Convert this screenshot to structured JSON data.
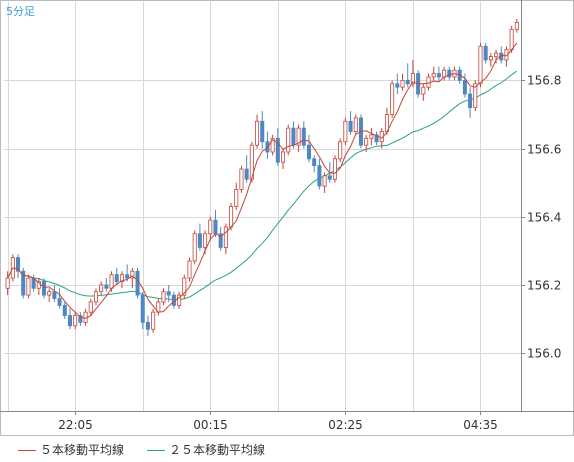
{
  "chart_data": {
    "type": "candlestick",
    "title": "5分足",
    "x_tick_labels": [
      "22:05",
      "00:15",
      "02:25",
      "04:35"
    ],
    "y_ticks": [
      156.0,
      156.2,
      156.4,
      156.6,
      156.8
    ],
    "y_tick_labels": [
      "156.0",
      "156.2",
      "156.4",
      "156.6",
      "156.8"
    ],
    "ylim": [
      155.83,
      157.03
    ],
    "grid": true,
    "legend_position": "bottom-left",
    "colors": {
      "up": "#c4463a",
      "down": "#4f87c2",
      "ma5": "#c4463a",
      "ma25": "#2aa37a",
      "grid": "#d8d8d8",
      "axis": "#888888",
      "title": "#3aa0d8"
    },
    "candles": [
      [
        156.19,
        156.24,
        156.17,
        156.22
      ],
      [
        156.22,
        156.29,
        156.21,
        156.28
      ],
      [
        156.28,
        156.29,
        156.22,
        156.24
      ],
      [
        156.24,
        156.25,
        156.16,
        156.17
      ],
      [
        156.17,
        156.23,
        156.16,
        156.22
      ],
      [
        156.22,
        156.23,
        156.18,
        156.19
      ],
      [
        156.19,
        156.22,
        156.17,
        156.21
      ],
      [
        156.21,
        156.22,
        156.16,
        156.17
      ],
      [
        156.17,
        156.19,
        156.15,
        156.18
      ],
      [
        156.18,
        156.2,
        156.15,
        156.16
      ],
      [
        156.16,
        156.19,
        156.13,
        156.14
      ],
      [
        156.14,
        156.15,
        156.1,
        156.11
      ],
      [
        156.11,
        156.13,
        156.07,
        156.08
      ],
      [
        156.08,
        156.12,
        156.07,
        156.11
      ],
      [
        156.11,
        156.12,
        156.08,
        156.09
      ],
      [
        156.09,
        156.13,
        156.08,
        156.12
      ],
      [
        156.12,
        156.16,
        156.11,
        156.15
      ],
      [
        156.15,
        156.19,
        156.14,
        156.18
      ],
      [
        156.18,
        156.21,
        156.17,
        156.2
      ],
      [
        156.2,
        156.22,
        156.18,
        156.19
      ],
      [
        156.19,
        156.24,
        156.18,
        156.23
      ],
      [
        156.23,
        156.25,
        156.2,
        156.21
      ],
      [
        156.21,
        156.24,
        156.19,
        156.23
      ],
      [
        156.23,
        156.26,
        156.21,
        156.22
      ],
      [
        156.22,
        156.25,
        156.19,
        156.24
      ],
      [
        156.24,
        156.25,
        156.16,
        156.17
      ],
      [
        156.17,
        156.18,
        156.07,
        156.09
      ],
      [
        156.09,
        156.11,
        156.05,
        156.07
      ],
      [
        156.07,
        156.13,
        156.06,
        156.12
      ],
      [
        156.12,
        156.16,
        156.11,
        156.15
      ],
      [
        156.15,
        156.19,
        156.14,
        156.18
      ],
      [
        156.18,
        156.2,
        156.15,
        156.17
      ],
      [
        156.17,
        156.18,
        156.13,
        156.14
      ],
      [
        156.14,
        156.18,
        156.13,
        156.17
      ],
      [
        156.17,
        156.23,
        156.16,
        156.22
      ],
      [
        156.22,
        156.28,
        156.21,
        156.27
      ],
      [
        156.27,
        156.36,
        156.26,
        156.35
      ],
      [
        156.35,
        156.38,
        156.3,
        156.31
      ],
      [
        156.31,
        156.36,
        156.29,
        156.35
      ],
      [
        156.35,
        156.4,
        156.33,
        156.39
      ],
      [
        156.39,
        156.42,
        156.34,
        156.35
      ],
      [
        156.35,
        156.37,
        156.3,
        156.31
      ],
      [
        156.31,
        156.38,
        156.29,
        156.37
      ],
      [
        156.37,
        156.44,
        156.36,
        156.43
      ],
      [
        156.43,
        156.5,
        156.42,
        156.48
      ],
      [
        156.48,
        156.55,
        156.47,
        156.54
      ],
      [
        156.54,
        156.58,
        156.5,
        156.51
      ],
      [
        156.51,
        156.62,
        156.5,
        156.61
      ],
      [
        156.61,
        156.7,
        156.6,
        156.68
      ],
      [
        156.68,
        156.71,
        156.6,
        156.62
      ],
      [
        156.62,
        156.65,
        156.57,
        156.59
      ],
      [
        156.59,
        156.64,
        156.58,
        156.63
      ],
      [
        156.63,
        156.66,
        156.55,
        156.56
      ],
      [
        156.56,
        156.6,
        156.54,
        156.59
      ],
      [
        156.59,
        156.67,
        156.58,
        156.66
      ],
      [
        156.66,
        156.68,
        156.6,
        156.61
      ],
      [
        156.61,
        156.67,
        156.59,
        156.66
      ],
      [
        156.66,
        156.68,
        156.6,
        156.61
      ],
      [
        156.61,
        156.64,
        156.56,
        156.57
      ],
      [
        156.57,
        156.58,
        156.53,
        156.55
      ],
      [
        156.55,
        156.57,
        156.48,
        156.49
      ],
      [
        156.49,
        156.53,
        156.47,
        156.52
      ],
      [
        156.52,
        156.56,
        156.5,
        156.51
      ],
      [
        156.51,
        156.58,
        156.5,
        156.57
      ],
      [
        156.57,
        156.63,
        156.56,
        156.62
      ],
      [
        156.62,
        156.69,
        156.61,
        156.68
      ],
      [
        156.68,
        156.71,
        156.64,
        156.65
      ],
      [
        156.65,
        156.7,
        156.64,
        156.69
      ],
      [
        156.69,
        156.7,
        156.6,
        156.61
      ],
      [
        156.61,
        156.64,
        156.59,
        156.63
      ],
      [
        156.63,
        156.66,
        156.61,
        156.64
      ],
      [
        156.64,
        156.65,
        156.61,
        156.62
      ],
      [
        156.62,
        156.66,
        156.6,
        156.65
      ],
      [
        156.65,
        156.72,
        156.64,
        156.7
      ],
      [
        156.7,
        156.8,
        156.69,
        156.79
      ],
      [
        156.79,
        156.82,
        156.76,
        156.78
      ],
      [
        156.78,
        156.82,
        156.77,
        156.8
      ],
      [
        156.8,
        156.85,
        156.78,
        156.79
      ],
      [
        156.79,
        156.86,
        156.78,
        156.82
      ],
      [
        156.82,
        156.83,
        156.75,
        156.76
      ],
      [
        156.76,
        156.79,
        156.74,
        156.78
      ],
      [
        156.78,
        156.82,
        156.77,
        156.81
      ],
      [
        156.81,
        156.84,
        156.8,
        156.82
      ],
      [
        156.82,
        156.84,
        156.8,
        156.81
      ],
      [
        156.81,
        156.84,
        156.8,
        156.83
      ],
      [
        156.83,
        156.84,
        156.8,
        156.81
      ],
      [
        156.81,
        156.84,
        156.8,
        156.83
      ],
      [
        156.83,
        156.84,
        156.79,
        156.8
      ],
      [
        156.8,
        156.82,
        156.75,
        156.76
      ],
      [
        156.76,
        156.78,
        156.69,
        156.72
      ],
      [
        156.72,
        156.8,
        156.71,
        156.79
      ],
      [
        156.79,
        156.91,
        156.78,
        156.9
      ],
      [
        156.9,
        156.91,
        156.85,
        156.86
      ],
      [
        156.86,
        156.88,
        156.84,
        156.87
      ],
      [
        156.87,
        156.89,
        156.85,
        156.88
      ],
      [
        156.88,
        156.9,
        156.85,
        156.86
      ],
      [
        156.86,
        156.9,
        156.84,
        156.89
      ],
      [
        156.89,
        156.96,
        156.88,
        156.95
      ],
      [
        156.95,
        156.98,
        156.94,
        156.97
      ]
    ],
    "series": [
      {
        "name": "５本移動平均線",
        "values": []
      },
      {
        "name": "２５本移動平均線",
        "values": []
      }
    ]
  }
}
